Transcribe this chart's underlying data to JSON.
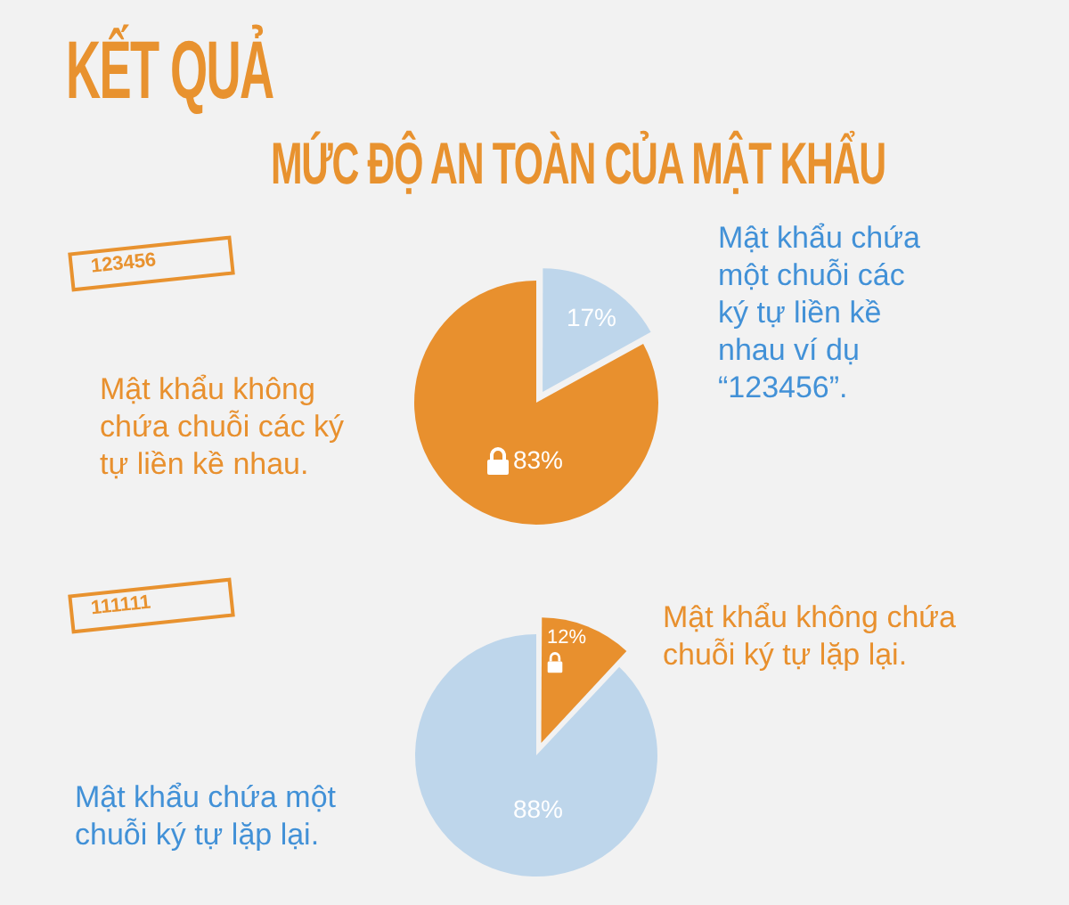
{
  "chart_data": [
    {
      "type": "pie",
      "title": "KẾT QUẢ",
      "subtitle": "MỨC ĐỘ AN TOÀN CỦA MẬT KHẨU",
      "categories": [
        "Mật khẩu chứa một chuỗi các ký tự liền kề nhau ví dụ “123456”.",
        "Mật khẩu không chứa chuỗi các ký tự liền kề nhau."
      ],
      "values": [
        17,
        83
      ],
      "colors": [
        "#bed6eb",
        "#e8902e"
      ],
      "value_labels": [
        "17%",
        "83%"
      ],
      "annotations": [
        "123456"
      ]
    },
    {
      "type": "pie",
      "categories": [
        "Mật khẩu không chứa chuỗi ký tự lặp lại.",
        "Mật khẩu chứa một chuỗi ký tự lặp lại."
      ],
      "values": [
        12,
        88
      ],
      "colors": [
        "#e8902e",
        "#bed6eb"
      ],
      "value_labels": [
        "12%",
        "88%"
      ],
      "annotations": [
        "111111"
      ]
    }
  ]
}
